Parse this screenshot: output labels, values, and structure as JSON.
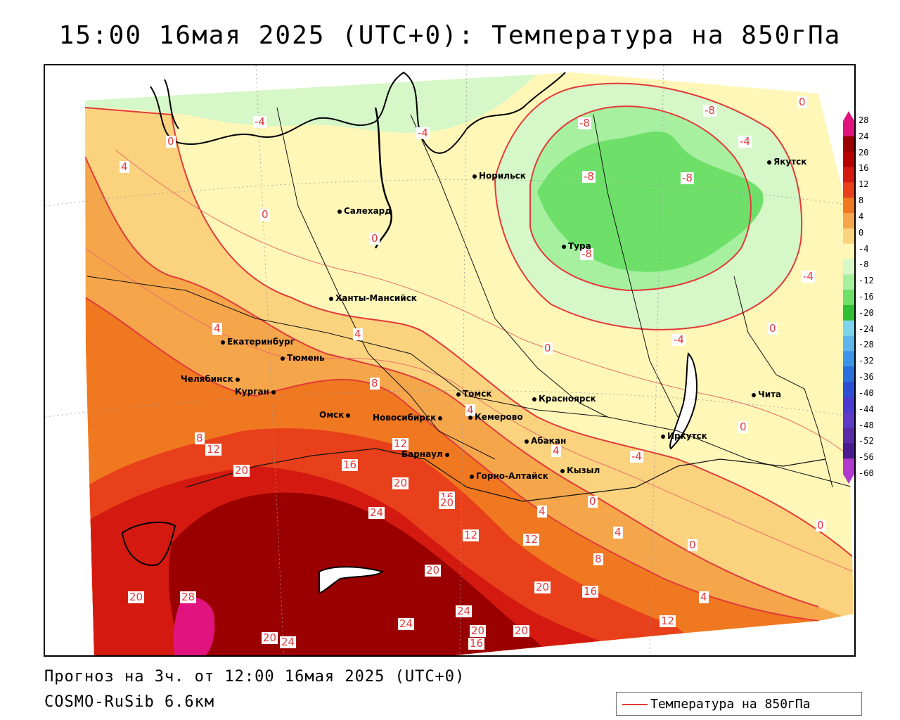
{
  "title": "15:00 16мая 2025 (UTC+0): Температура на 850гПа",
  "footer": {
    "forecast": "Прогноз на 3ч. от 12:00 16мая 2025 (UTC+0)",
    "model": "COSMO-RuSib 6.6км"
  },
  "legend": {
    "label": "Температура на 850гПа",
    "line_color": "#e23a3a"
  },
  "colorbar": {
    "ticks": [
      "28",
      "24",
      "20",
      "16",
      "12",
      "8",
      "4",
      "0",
      "-4",
      "-8",
      "-12",
      "-16",
      "-20",
      "-24",
      "-28",
      "-32",
      "-36",
      "-40",
      "-44",
      "-48",
      "-52",
      "-56",
      "-60"
    ],
    "colors": [
      "#e0137f",
      "#9b0000",
      "#b80000",
      "#d41a10",
      "#e8401a",
      "#f07820",
      "#f5a54a",
      "#fbd27e",
      "#fff7b8",
      "#d6f7c8",
      "#a6f0a0",
      "#6ee06a",
      "#2fbf35",
      "#7fd4ed",
      "#5fb5ec",
      "#3e94e6",
      "#2a6fdc",
      "#2d4fd6",
      "#4a3ad0",
      "#5e3cc8",
      "#5a2aa8",
      "#4a1a90",
      "#b03acd"
    ]
  },
  "cities": [
    {
      "name": "Норильск"
    },
    {
      "name": "Якутск"
    },
    {
      "name": "Салехард"
    },
    {
      "name": "Тура"
    },
    {
      "name": "Ханты-Мансийск"
    },
    {
      "name": "Екатеринбург"
    },
    {
      "name": "Тюмень"
    },
    {
      "name": "Челябинск"
    },
    {
      "name": "Курган"
    },
    {
      "name": "Омск"
    },
    {
      "name": "Новосибирск"
    },
    {
      "name": "Томск"
    },
    {
      "name": "Кемерово"
    },
    {
      "name": "Красноярск"
    },
    {
      "name": "Абакан"
    },
    {
      "name": "Барнаул"
    },
    {
      "name": "Горно-Алтайск"
    },
    {
      "name": "Кызыл"
    },
    {
      "name": "Иркутск"
    },
    {
      "name": "Чита"
    }
  ],
  "contour_labels": [
    "-4",
    "-4",
    "-8",
    "-8",
    "-8",
    "-8",
    "0",
    "-4",
    "0",
    "0",
    "-4",
    "4",
    "0",
    "4",
    "4",
    "-4",
    "0",
    "0",
    "0",
    "8",
    "4",
    "8",
    "12",
    "20",
    "16",
    "12",
    "20",
    "16",
    "20",
    "24",
    "12",
    "-8",
    "4",
    "12",
    "8",
    "20",
    "16",
    "20",
    "28",
    "20",
    "24",
    "24",
    "20",
    "16",
    "20",
    "20",
    "24",
    "8",
    "12",
    "4",
    "0",
    "0",
    "-4",
    "0",
    "4",
    "0",
    "4"
  ]
}
